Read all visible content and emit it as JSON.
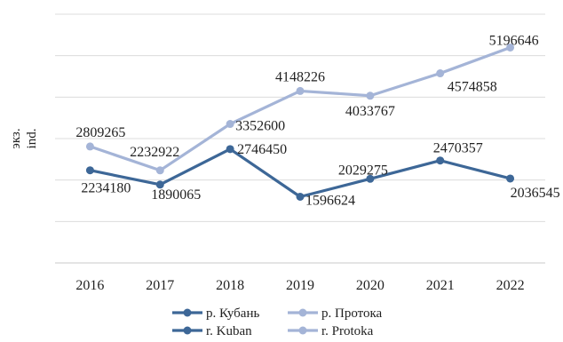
{
  "chart_data": {
    "type": "line",
    "categories": [
      "2016",
      "2017",
      "2018",
      "2019",
      "2020",
      "2021",
      "2022"
    ],
    "ylabel_lines": [
      "экз.",
      "ind."
    ],
    "ylim": [
      0,
      6000000
    ],
    "grid": true,
    "legend_position": "bottom",
    "series": [
      {
        "name": "р. Кубань",
        "name_en": "r. Kuban",
        "color": "#3d6797",
        "values": [
          2234180,
          1890065,
          2746450,
          1596624,
          2029275,
          2470357,
          2036545
        ],
        "labels": [
          "2234180",
          "1890065",
          "2746450",
          "1596624",
          "2029275",
          "2470357",
          "2036545"
        ]
      },
      {
        "name": "р. Протока",
        "name_en": "r. Protoka",
        "color": "#a4b4d7",
        "values": [
          2809265,
          2232922,
          3352600,
          4148226,
          4033767,
          4574858,
          5196646
        ],
        "labels": [
          "2809265",
          "2232922",
          "3352600",
          "4148226",
          "4033767",
          "4574858",
          "5196646"
        ]
      }
    ]
  }
}
